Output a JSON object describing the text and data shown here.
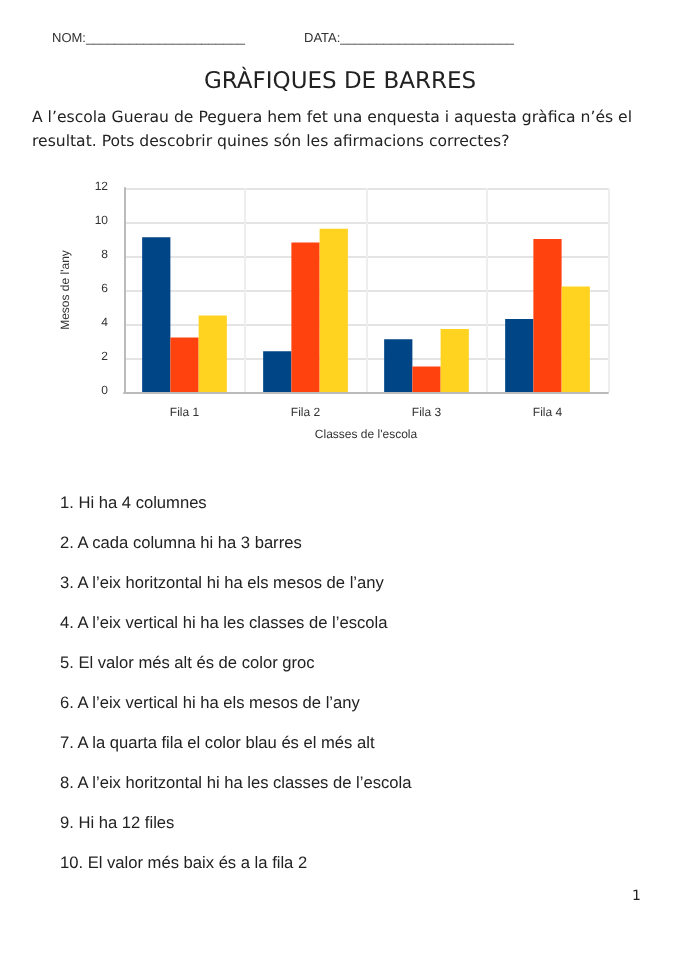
{
  "chart_data": {
    "type": "bar",
    "title": "GRÀFIQUES DE BARRES",
    "subtitle": "A l’escola Guerau de Peguera hem fet una enquesta i aquesta gràfica n’és el resultat. Pots descobrir quines són les afirmacions correctes?",
    "xlabel": "Classes de l'escola",
    "ylabel": "Mesos de l'any",
    "categories": [
      "Fila 1",
      "Fila 2",
      "Fila 3",
      "Fila 4"
    ],
    "series": [
      {
        "color": "#004586",
        "values": [
          9.1,
          2.4,
          3.1,
          4.3
        ]
      },
      {
        "color": "#ff420e",
        "values": [
          3.2,
          8.8,
          1.5,
          9.0
        ]
      },
      {
        "color": "#ffd320",
        "values": [
          4.5,
          9.6,
          3.7,
          6.2
        ]
      }
    ],
    "ylim": [
      0,
      12
    ],
    "yticks": [
      0,
      2,
      4,
      6,
      8,
      10,
      12
    ],
    "grid": true,
    "annotations": [
      "NOM:______________________",
      "DATA:________________________",
      "1. Hi ha 4 columnes",
      "2. A cada columna hi ha 3 barres",
      "3. A l’eix horitzontal hi ha els mesos de l’any",
      "4. A l’eix vertical hi ha les classes de l’escola",
      "5. El valor més alt és de color groc",
      "6. A l’eix vertical hi ha els mesos de l’any",
      "7. A la quarta fila el color blau és el més alt",
      "8. A l’eix horitzontal hi ha les classes de l’escola",
      "9. Hi ha 12 files",
      "10. El valor més baix és a la fila 2",
      "1"
    ]
  }
}
